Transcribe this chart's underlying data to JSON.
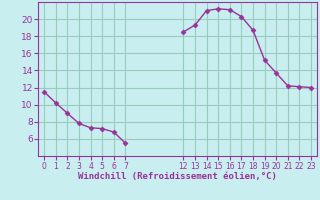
{
  "x": [
    0,
    1,
    2,
    3,
    4,
    5,
    6,
    7,
    12,
    13,
    14,
    15,
    16,
    17,
    18,
    19,
    20,
    21,
    22,
    23
  ],
  "y": [
    11.5,
    10.2,
    9.0,
    7.8,
    7.3,
    7.2,
    6.8,
    5.5,
    18.5,
    19.3,
    21.0,
    21.2,
    21.1,
    20.3,
    18.7,
    15.2,
    13.7,
    12.2,
    12.1,
    12.0
  ],
  "line_color": "#993399",
  "marker": "D",
  "marker_size": 2.5,
  "bg_color": "#c8eef0",
  "grid_color": "#99ccbb",
  "xlabel": "Windchill (Refroidissement éolien,°C)",
  "xlabel_color": "#993399",
  "tick_color": "#993399",
  "ylim": [
    4,
    22
  ],
  "yticks": [
    6,
    8,
    10,
    12,
    14,
    16,
    18,
    20
  ],
  "xlim": [
    -0.5,
    23.5
  ],
  "xtick_positions": [
    0,
    1,
    2,
    3,
    4,
    5,
    6,
    7,
    12,
    13,
    14,
    15,
    16,
    17,
    18,
    19,
    20,
    21,
    22,
    23
  ],
  "xtick_labels": [
    "0",
    "1",
    "2",
    "3",
    "4",
    "5",
    "6",
    "7",
    "12",
    "13",
    "14",
    "15",
    "16",
    "17",
    "18",
    "19",
    "20",
    "21",
    "22",
    "23"
  ]
}
